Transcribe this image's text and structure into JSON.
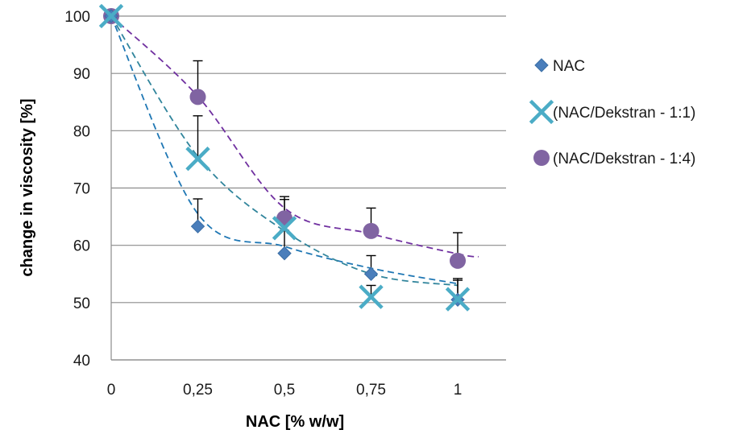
{
  "chart_data": {
    "type": "scatter",
    "title": "",
    "xlabel": "NAC [% w/w]",
    "ylabel": "change in viscosity [%]",
    "x": [
      0,
      0.25,
      0.5,
      0.75,
      1
    ],
    "x_tick_labels": [
      "0",
      "0,25",
      "0,5",
      "0,75",
      "1"
    ],
    "y_ticks": [
      40,
      50,
      60,
      70,
      80,
      90,
      100
    ],
    "xlim": [
      0,
      1.15
    ],
    "ylim": [
      40,
      100
    ],
    "grid": "horizontal",
    "legend_position": "right",
    "series": [
      {
        "name": "NAC",
        "marker": "diamond",
        "color": "#4a7ebb",
        "values": [
          100,
          63.3,
          58.6,
          55.0,
          50.5
        ],
        "error_plus": [
          0,
          4.8,
          4.0,
          3.2,
          3.7
        ],
        "trendline": {
          "style": "dashed",
          "color": "#1f77b4",
          "points": [
            [
              0,
              100
            ],
            [
              0.25,
              65.5
            ],
            [
              0.5,
              59.8
            ],
            [
              0.75,
              56
            ],
            [
              1,
              53.3
            ]
          ]
        }
      },
      {
        "name": "(NAC/Dekstran - 1:1)",
        "marker": "x",
        "color": "#4bacc6",
        "values": [
          100,
          75.1,
          63.0,
          51.0,
          50.6
        ],
        "error_plus": [
          0,
          7.5,
          5.0,
          2.0,
          3.3
        ],
        "trendline": {
          "style": "dashed",
          "color": "#31859c",
          "points": [
            [
              0,
              100
            ],
            [
              0.25,
              75.5
            ],
            [
              0.5,
              62.5
            ],
            [
              0.75,
              55
            ],
            [
              1,
              53
            ]
          ]
        }
      },
      {
        "name": "(NAC/Dekstran - 1:4)",
        "marker": "circle",
        "color": "#8064a2",
        "values": [
          100,
          85.9,
          64.7,
          62.5,
          57.3
        ],
        "error_plus": [
          0,
          6.3,
          3.8,
          4.0,
          4.9
        ],
        "trendline": {
          "style": "dashed",
          "color": "#7030a0",
          "points": [
            [
              0,
              100
            ],
            [
              0.25,
              86
            ],
            [
              0.5,
              66.5
            ],
            [
              0.75,
              62
            ],
            [
              1,
              58.5
            ],
            [
              1.06,
              58
            ]
          ]
        }
      }
    ]
  }
}
